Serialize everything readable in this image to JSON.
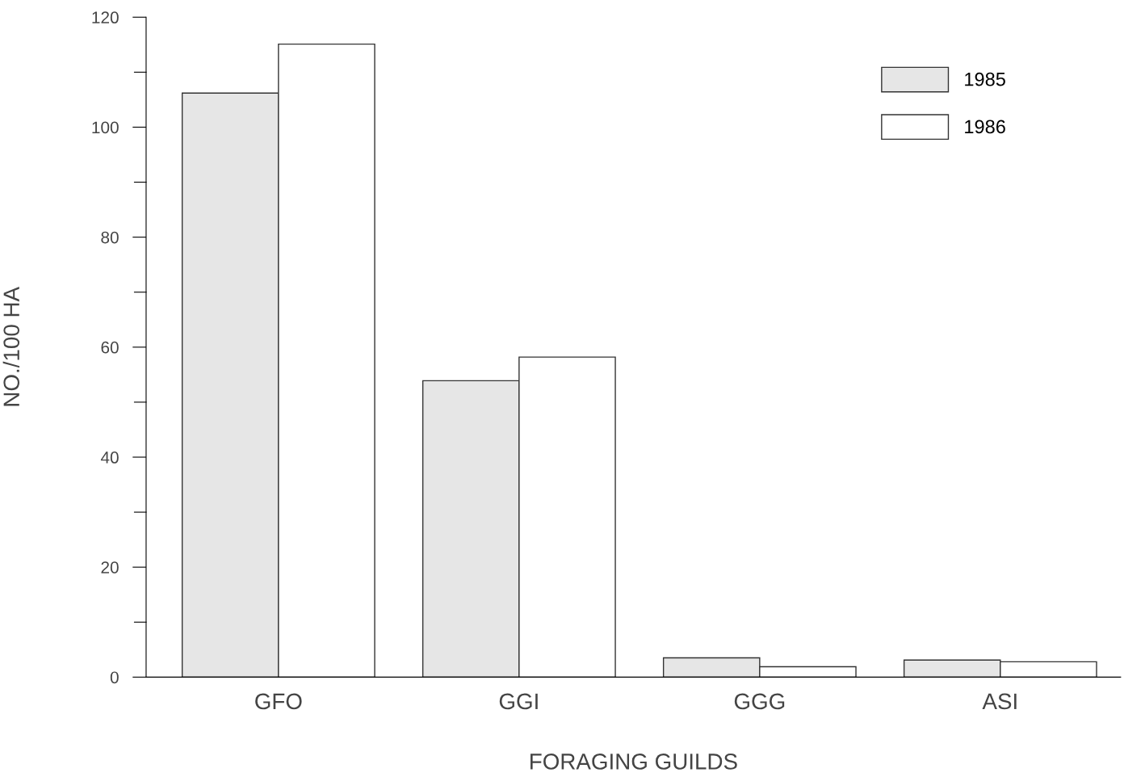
{
  "chart_data": {
    "type": "bar",
    "xlabel": "FORAGING GUILDS",
    "ylabel": "NO./100 HA",
    "categories": [
      "GFO",
      "GGI",
      "GGG",
      "ASI"
    ],
    "series": [
      {
        "name": "1985",
        "color": "#e6e6e6",
        "values": [
          106.2,
          53.9,
          3.5,
          3.1
        ]
      },
      {
        "name": "1986",
        "color": "#ffffff",
        "values": [
          115.1,
          58.2,
          1.9,
          2.8
        ]
      }
    ],
    "ylim": [
      0,
      120
    ],
    "yticks": [
      0,
      {
        "value": 10,
        "label": null
      },
      20,
      {
        "value": 30,
        "label": null
      },
      40,
      {
        "value": 50,
        "label": null
      },
      60,
      {
        "value": 70,
        "label": null
      },
      80,
      {
        "value": 90,
        "label": null
      },
      100,
      {
        "value": 110,
        "label": null
      },
      120
    ],
    "grid": false,
    "legend": "top right"
  }
}
